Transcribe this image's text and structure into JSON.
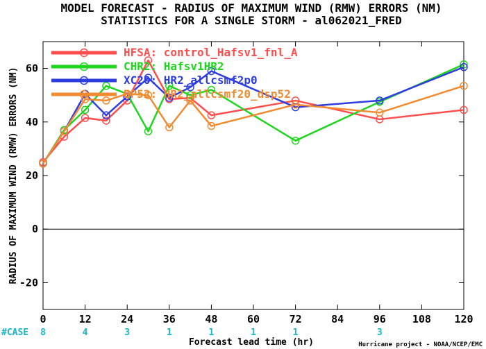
{
  "chart_data": {
    "type": "line",
    "title": "MODEL FORECAST - RADIUS OF MAXIMUM WIND (RMW) ERRORS (NM)",
    "subtitle": "STATISTICS FOR A SINGLE STORM - al062021_FRED",
    "xlabel": "Forecast lead time (hr)",
    "ylabel": "RADIUS OF MAXIMUM WIND (RMW) ERRORS (NM)",
    "xlim": [
      0,
      120
    ],
    "ylim": [
      -30,
      70
    ],
    "xticks": [
      "0",
      "12",
      "24",
      "36",
      "48",
      "60",
      "72",
      "84",
      "96",
      "108",
      "120"
    ],
    "yticks": [
      "-20",
      "0",
      "20",
      "40",
      "60"
    ],
    "zero_line": true,
    "legend_position": "top-left",
    "series": [
      {
        "name": "HFSA: control_Hafsv1_fnl_A",
        "color": "#ff4d4d",
        "x": [
          0,
          6,
          12,
          18,
          24,
          30,
          36,
          42,
          48,
          72,
          96,
          120
        ],
        "y": [
          25,
          34.5,
          41.5,
          40.5,
          48,
          63,
          48.5,
          49,
          42.5,
          48,
          41,
          44.5
        ]
      },
      {
        "name": "CHR2: Hafsv1HR2",
        "color": "#1fd61f",
        "x": [
          0,
          6,
          12,
          18,
          24,
          30,
          36,
          42,
          48,
          72,
          96,
          120
        ],
        "y": [
          24.5,
          37,
          44.5,
          53.5,
          50.5,
          36.5,
          53.5,
          50,
          52,
          33,
          47.5,
          61.5
        ]
      },
      {
        "name": "XC20: HR2_allcsmf2p0",
        "color": "#2d3de0",
        "x": [
          0,
          6,
          12,
          18,
          24,
          30,
          36,
          42,
          48,
          72,
          96,
          120
        ],
        "y": [
          24.5,
          36.5,
          50.5,
          42.5,
          49.5,
          56.5,
          49,
          53,
          59,
          45.5,
          48,
          60.5
        ]
      },
      {
        "name": "DP52: HR2_allcsmf20_dsp52",
        "color": "#f28a30",
        "x": [
          0,
          6,
          12,
          18,
          24,
          30,
          36,
          42,
          48,
          72,
          96,
          120
        ],
        "y": [
          24.5,
          36.5,
          48.5,
          48,
          50.5,
          50,
          38,
          48,
          38.5,
          46.5,
          43.5,
          53.5
        ]
      }
    ],
    "case_label": "#CASE",
    "cases": [
      {
        "x": 0,
        "n": "8"
      },
      {
        "x": 12,
        "n": "4"
      },
      {
        "x": 24,
        "n": "3"
      },
      {
        "x": 36,
        "n": "1"
      },
      {
        "x": 48,
        "n": "1"
      },
      {
        "x": 60,
        "n": "1"
      },
      {
        "x": 72,
        "n": "1"
      },
      {
        "x": 96,
        "n": "3"
      }
    ],
    "credit": "Hurricane project - NOAA/NCEP/EMC"
  }
}
